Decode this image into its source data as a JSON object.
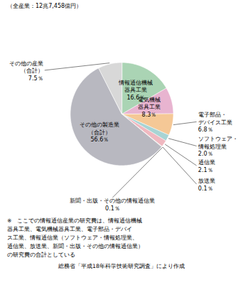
{
  "chart_data": {
    "type": "pie",
    "title": "（全産業：12兆7,458億円）",
    "categories": [
      "情報通信機械\n器具工業",
      "電気機械\n器具工業",
      "電子部品・\nデバイス工業",
      "ソフトウェア・\n情報処理業",
      "通信業",
      "放送業",
      "新聞・出版・その他の情報通信業",
      "その他の製造業\n（合計）",
      "その他の産業\n（合計）"
    ],
    "values": [
      16.6,
      8.3,
      6.8,
      2.0,
      2.1,
      0.1,
      0.1,
      56.6,
      7.5
    ],
    "value_labels": [
      "16.6％",
      "8.3％",
      "6.8％",
      "2.0％",
      "2.1％",
      "0.1％",
      "0.1％",
      "56.6％",
      "7.5％"
    ],
    "colors": [
      "#aad4b4",
      "#e8b4d0",
      "#f5c896",
      "#a8d4d4",
      "#f0b8c0",
      "#c8d0f0",
      "#d0d890",
      "#b8b8c0",
      "#d8d8d8"
    ],
    "data_labels": true,
    "annotations": [
      "※　ここでの情報通信産業の研究費は、情報通信機械\n器具工業、電気機械器具工業、電子部品・デバイ\nス工業、情報通信業（ソフトウェア・情報処理業、\n通信業、放送業、新聞・出版・その他の情報通信業）\nの研究費の合計としている",
      "総務省「平成18年科学技術研究調査」により作成"
    ]
  }
}
